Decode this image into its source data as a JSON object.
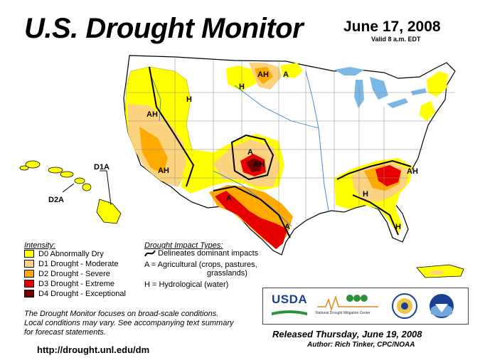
{
  "header": {
    "title": "U.S. Drought Monitor",
    "date": "June 17, 2008",
    "valid": "Valid 8 a.m. EDT"
  },
  "map": {
    "region_labels": {
      "hawaii_d1a": "D1A",
      "hawaii_d2a": "D2A"
    },
    "impact_labels": [
      "A",
      "H",
      "AH"
    ],
    "colors": {
      "D0": "#ffff00",
      "D1": "#fcd37f",
      "D2": "#ffaa00",
      "D3": "#e60000",
      "D4": "#730000",
      "water": "#7ab8e8",
      "land": "#ffffff"
    }
  },
  "legend": {
    "intensity_title": "Intensity:",
    "items": [
      {
        "code": "D0",
        "label": "D0 Abnormally Dry",
        "color": "#ffff00"
      },
      {
        "code": "D1",
        "label": "D1 Drought - Moderate",
        "color": "#fcd37f"
      },
      {
        "code": "D2",
        "label": "D2 Drought - Severe",
        "color": "#ffaa00"
      },
      {
        "code": "D3",
        "label": "D3 Drought - Extreme",
        "color": "#e60000"
      },
      {
        "code": "D4",
        "label": "D4 Drought - Exceptional",
        "color": "#730000"
      }
    ]
  },
  "impacts": {
    "title": "Drought Impact Types:",
    "delineates": "Delineates dominant impacts",
    "agricultural_line1": "A = Agricultural (crops, pastures,",
    "agricultural_line2": "grasslands)",
    "hydrological": "H = Hydrological (water)"
  },
  "footer": {
    "note_line1": "The Drought Monitor focuses on broad-scale conditions.",
    "note_line2": "Local conditions may vary. See accompanying text summary",
    "note_line3": "for forecast statements.",
    "url": "http://drought.unl.edu/dm",
    "released": "Released Thursday, June 19, 2008",
    "author": "Author: Rich Tinker, CPC/NOAA"
  },
  "logos": {
    "usda": "USDA",
    "ndmc": "National Drought Mitigation Center"
  }
}
